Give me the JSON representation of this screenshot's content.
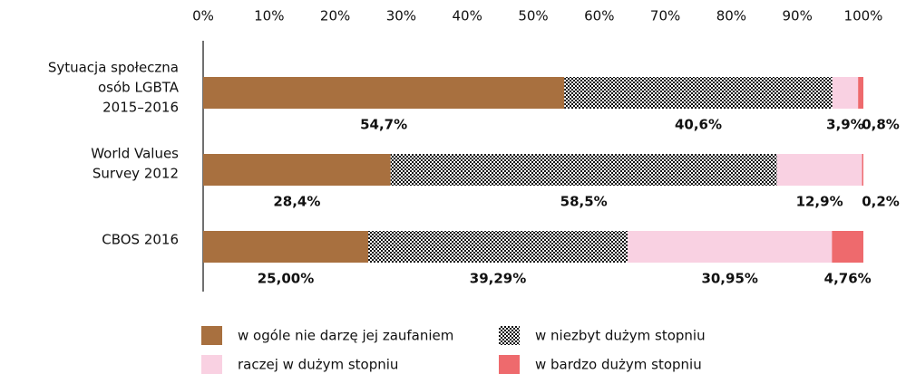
{
  "chart_data": {
    "type": "stacked-barh",
    "categories": [
      "Sytuacja społeczna\nosób LGBTA\n2015–2016",
      "World Values\nSurvey 2012",
      "CBOS 2016"
    ],
    "series": [
      {
        "name": "w ogóle nie darzę jej zaufaniem",
        "color": "#a8703f",
        "values": [
          54.7,
          28.4,
          25.0
        ],
        "value_labels": [
          "54,7%",
          "28,4%",
          "25,00%"
        ]
      },
      {
        "name": "w niezbyt dużym stopniu",
        "color": "pattern",
        "values": [
          40.6,
          58.5,
          39.29
        ],
        "value_labels": [
          "40,6%",
          "58,5%",
          "39,29%"
        ]
      },
      {
        "name": "raczej w dużym stopniu",
        "color": "#f9d1e2",
        "values": [
          3.9,
          12.9,
          30.95
        ],
        "value_labels": [
          "3,9%",
          "12,9%",
          "30,95%"
        ]
      },
      {
        "name": "w bardzo dużym stopniu",
        "color": "#ee6a6d",
        "values": [
          0.8,
          0.2,
          4.76
        ],
        "value_labels": [
          "0,8%",
          "0,2%",
          "4,76%"
        ]
      }
    ],
    "xlim": [
      0,
      100
    ],
    "xticks": [
      {
        "value": 0,
        "label": "0%"
      },
      {
        "value": 10,
        "label": "10%"
      },
      {
        "value": 20,
        "label": "20%"
      },
      {
        "value": 30,
        "label": "30%"
      },
      {
        "value": 40,
        "label": "40%"
      },
      {
        "value": 50,
        "label": "50%"
      },
      {
        "value": 60,
        "label": "60%"
      },
      {
        "value": 70,
        "label": "70%"
      },
      {
        "value": 80,
        "label": "80%"
      },
      {
        "value": 90,
        "label": "90%"
      },
      {
        "value": 100,
        "label": "100%"
      }
    ],
    "legend": "bottom"
  }
}
